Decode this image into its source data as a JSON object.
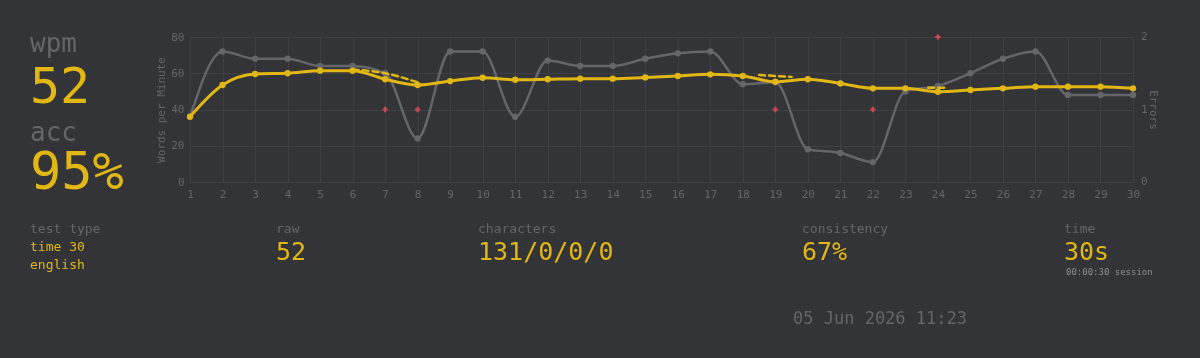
{
  "chart_data": {
    "type": "line",
    "x": [
      1,
      2,
      3,
      4,
      5,
      6,
      7,
      8,
      9,
      10,
      11,
      12,
      13,
      14,
      15,
      16,
      17,
      18,
      19,
      20,
      21,
      22,
      23,
      24,
      25,
      26,
      27,
      28,
      29,
      30
    ],
    "series": [
      {
        "type": "line",
        "color": "#646669",
        "line_style": "solid",
        "marker": "circle",
        "values": [
          36,
          72,
          68,
          68,
          64,
          64,
          60,
          24,
          72,
          72,
          36,
          67,
          64,
          64,
          68,
          71,
          72,
          54,
          55,
          18,
          16,
          11,
          50,
          53,
          60,
          68,
          72,
          48,
          48,
          48
        ]
      },
      {
        "type": "line",
        "color": "#e2b714",
        "line_style": "solid",
        "marker": "circle",
        "values": [
          36,
          53.5,
          59.6,
          60,
          61.4,
          61.4,
          56.7,
          53.5,
          55.7,
          57.5,
          56.4,
          56.7,
          57,
          57,
          57.7,
          58.5,
          59.4,
          58.5,
          55.3,
          56.7,
          54.4,
          51.7,
          51.7,
          49.8,
          50.8,
          51.7,
          52.6,
          52.6,
          52.6,
          51.7
        ]
      },
      {
        "type": "line",
        "color": "#e2b714",
        "line_style": "dashed",
        "marker": "none",
        "x": [
          6,
          7,
          8,
          8.5,
          18.5,
          19.5,
          20,
          23.7,
          24.3
        ],
        "values": [
          62,
          60,
          55,
          null,
          59,
          58,
          null,
          52,
          52
        ]
      },
      {
        "type": "scatter",
        "axis": "y2",
        "color": "#ca4754",
        "marker": "cross",
        "x": [
          7,
          8,
          19,
          22,
          24
        ],
        "values": [
          1,
          1,
          1,
          1,
          2
        ]
      }
    ],
    "xlim": [
      1,
      30
    ],
    "xticks": [
      1,
      2,
      3,
      4,
      5,
      6,
      7,
      8,
      9,
      10,
      11,
      12,
      13,
      14,
      15,
      16,
      17,
      18,
      19,
      20,
      21,
      22,
      23,
      24,
      25,
      26,
      27,
      28,
      29,
      30
    ],
    "ylim": [
      0,
      80
    ],
    "yticks": [
      0,
      20,
      40,
      60,
      80
    ],
    "y2lim": [
      0,
      2
    ],
    "y2ticks": [
      0,
      1,
      2
    ],
    "ylabel": "Words per Minute",
    "y2label": "Errors",
    "grid": true,
    "annotations": [
      "wpm",
      "52",
      "acc",
      "95%",
      "test type",
      "time 30",
      "english",
      "raw",
      "52",
      "characters",
      "131/0/0/0",
      "consistency",
      "67%",
      "time",
      "30s",
      "00:00:30 session",
      "05 Jun 2026 11:23"
    ]
  }
}
